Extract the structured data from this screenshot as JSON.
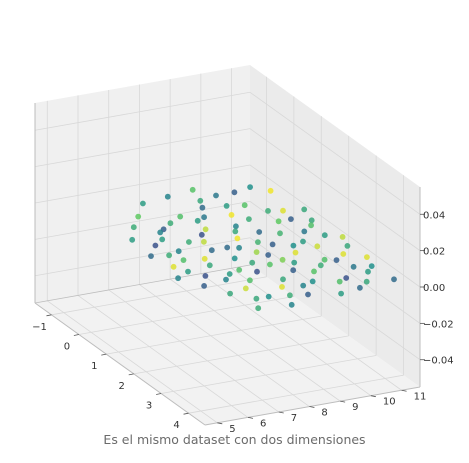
{
  "caption": "Es el mismo dataset con dos dimensiones",
  "chart_data": {
    "type": "scatter",
    "projection": "3d",
    "title": "",
    "xlabel": "",
    "ylabel": "",
    "zlabel": "",
    "x_ticks": [
      "−1",
      "0",
      "1",
      "2",
      "3",
      "4"
    ],
    "y_ticks": [
      "5",
      "6",
      "7",
      "8",
      "9",
      "10",
      "11"
    ],
    "z_ticks": [
      "−0.04",
      "−0.02",
      "0.00",
      "0.02",
      "0.04"
    ],
    "xlim": [
      -1.6,
      4.6
    ],
    "ylim": [
      4.6,
      11.6
    ],
    "zlim": [
      -0.055,
      0.055
    ],
    "grid": true,
    "colormap": "viridis",
    "colors": {
      "pane_left": "#f0f0f0",
      "pane_back": "#ebebeb",
      "pane_floor": "#f2f2f2",
      "grid": "#d8d8d8",
      "axis": "#bdbdbd"
    },
    "points": [
      {
        "x": 0.2,
        "y": 7.4,
        "z": 0,
        "c": 0.62
      },
      {
        "x": 0.5,
        "y": 6.8,
        "z": 0,
        "c": 0.45
      },
      {
        "x": 0.3,
        "y": 8.2,
        "z": 0,
        "c": 0.55
      },
      {
        "x": 0.0,
        "y": 7.9,
        "z": 0,
        "c": 0.7
      },
      {
        "x": 1.2,
        "y": 7.6,
        "z": 0,
        "c": 0.9
      },
      {
        "x": 1.0,
        "y": 8.8,
        "z": 0,
        "c": 0.6
      },
      {
        "x": 1.6,
        "y": 8.0,
        "z": 0,
        "c": 0.35
      },
      {
        "x": 0.5,
        "y": 10.8,
        "z": 0,
        "c": 0.95
      },
      {
        "x": -0.6,
        "y": 10.2,
        "z": 0,
        "c": 0.3
      },
      {
        "x": 0.9,
        "y": 10.3,
        "z": 0,
        "c": 0.75
      },
      {
        "x": 1.8,
        "y": 11.0,
        "z": 0,
        "c": 0.55
      },
      {
        "x": 2.2,
        "y": 10.4,
        "z": 0,
        "c": 0.92
      },
      {
        "x": 1.4,
        "y": 9.9,
        "z": 0,
        "c": 0.65
      },
      {
        "x": 2.8,
        "y": 10.1,
        "z": 0,
        "c": 0.7
      },
      {
        "x": 3.3,
        "y": 10.6,
        "z": 0,
        "c": 0.4
      },
      {
        "x": 3.7,
        "y": 10.0,
        "z": 0,
        "c": 0.25
      },
      {
        "x": 4.0,
        "y": 10.4,
        "z": 0,
        "c": 0.6
      },
      {
        "x": 2.7,
        "y": 9.2,
        "z": 0,
        "c": 0.55
      },
      {
        "x": 2.3,
        "y": 9.6,
        "z": 0,
        "c": 0.95
      },
      {
        "x": 3.6,
        "y": 9.0,
        "z": 0,
        "c": 0.5
      },
      {
        "x": 2.0,
        "y": 8.6,
        "z": 0,
        "c": 0.85
      },
      {
        "x": 1.8,
        "y": 9.3,
        "z": 0,
        "c": 0.3
      },
      {
        "x": 0.6,
        "y": 9.6,
        "z": 0,
        "c": 0.62
      },
      {
        "x": 0.8,
        "y": 9.0,
        "z": 0,
        "c": 0.45
      },
      {
        "x": -0.2,
        "y": 8.8,
        "z": 0,
        "c": 0.35
      },
      {
        "x": -0.5,
        "y": 9.0,
        "z": 0,
        "c": 0.6
      },
      {
        "x": 0.0,
        "y": 10.0,
        "z": 0,
        "c": 0.72
      },
      {
        "x": -0.4,
        "y": 11.2,
        "z": 0,
        "c": 0.98
      },
      {
        "x": 1.1,
        "y": 11.2,
        "z": 0,
        "c": 0.6
      },
      {
        "x": 2.7,
        "y": 10.8,
        "z": 0,
        "c": 0.95
      },
      {
        "x": 3.0,
        "y": 9.8,
        "z": 0,
        "c": 0.62
      },
      {
        "x": 2.6,
        "y": 8.5,
        "z": 0,
        "c": 0.72
      },
      {
        "x": 3.0,
        "y": 8.9,
        "z": 0,
        "c": 0.3
      },
      {
        "x": 3.3,
        "y": 8.3,
        "z": 0,
        "c": 0.6
      },
      {
        "x": 2.1,
        "y": 7.8,
        "z": 0,
        "c": 0.5
      },
      {
        "x": 2.6,
        "y": 7.5,
        "z": 0,
        "c": 0.7
      },
      {
        "x": 1.4,
        "y": 6.6,
        "z": 0,
        "c": 0.45
      },
      {
        "x": 1.9,
        "y": 7.0,
        "z": 0,
        "c": 0.95
      },
      {
        "x": 2.2,
        "y": 6.9,
        "z": 0,
        "c": 0.6
      },
      {
        "x": 1.0,
        "y": 6.2,
        "z": 0,
        "c": 0.25
      },
      {
        "x": 0.6,
        "y": 5.8,
        "z": 0,
        "c": 0.55
      },
      {
        "x": 1.4,
        "y": 5.7,
        "z": 0,
        "c": 0.35
      },
      {
        "x": 2.3,
        "y": 6.1,
        "z": 0,
        "c": 0.55
      },
      {
        "x": 2.6,
        "y": 6.4,
        "z": 0,
        "c": 0.25
      },
      {
        "x": 2.9,
        "y": 6.8,
        "z": 0,
        "c": 0.45
      },
      {
        "x": 3.1,
        "y": 7.4,
        "z": 0,
        "c": 0.7
      },
      {
        "x": 3.6,
        "y": 8.0,
        "z": 0,
        "c": 0.95
      },
      {
        "x": 3.9,
        "y": 7.3,
        "z": 0,
        "c": 0.5
      },
      {
        "x": 3.5,
        "y": 6.4,
        "z": 0,
        "c": 0.6
      },
      {
        "x": 4.1,
        "y": 8.4,
        "z": 0,
        "c": 0.3
      },
      {
        "x": 4.3,
        "y": 9.3,
        "z": 0,
        "c": 0.55
      },
      {
        "x": 3.8,
        "y": 9.7,
        "z": 0,
        "c": 0.7
      },
      {
        "x": 4.2,
        "y": 10.0,
        "z": 0,
        "c": 0.35
      },
      {
        "x": 4.3,
        "y": 6.6,
        "z": 0,
        "c": 0.62
      },
      {
        "x": 2.0,
        "y": 9.8,
        "z": 0,
        "c": 0.5
      },
      {
        "x": 1.5,
        "y": 10.6,
        "z": 0,
        "c": 0.4
      },
      {
        "x": 1.3,
        "y": 8.6,
        "z": 0,
        "c": 0.98
      },
      {
        "x": 1.6,
        "y": 9.0,
        "z": 0,
        "c": 0.65
      },
      {
        "x": 0.4,
        "y": 7.0,
        "z": 0,
        "c": 0.3
      },
      {
        "x": 0.1,
        "y": 6.3,
        "z": 0,
        "c": 0.62
      },
      {
        "x": -0.3,
        "y": 6.8,
        "z": 0,
        "c": 0.75
      },
      {
        "x": -0.8,
        "y": 7.4,
        "z": 0,
        "c": 0.55
      },
      {
        "x": -0.9,
        "y": 8.3,
        "z": 0,
        "c": 0.45
      },
      {
        "x": -0.6,
        "y": 9.6,
        "z": 0,
        "c": 0.4
      },
      {
        "x": 1.1,
        "y": 7.2,
        "z": 0,
        "c": 0.62
      },
      {
        "x": 1.6,
        "y": 7.5,
        "z": 0,
        "c": 0.35
      },
      {
        "x": 0.7,
        "y": 8.1,
        "z": 0,
        "c": 0.9
      },
      {
        "x": 2.4,
        "y": 8.1,
        "z": 0,
        "c": 0.6
      },
      {
        "x": 2.8,
        "y": 7.9,
        "z": 0,
        "c": 0.25
      },
      {
        "x": 3.2,
        "y": 9.4,
        "z": 0,
        "c": 0.72
      },
      {
        "x": 0.9,
        "y": 10.7,
        "z": 0,
        "c": 0.3
      },
      {
        "x": 2.4,
        "y": 11.2,
        "z": 0,
        "c": 0.6
      },
      {
        "x": 3.0,
        "y": 11.3,
        "z": 0,
        "c": 0.95
      },
      {
        "x": 3.4,
        "y": 11.1,
        "z": 0,
        "c": 0.5
      },
      {
        "x": 1.7,
        "y": 8.3,
        "z": 0,
        "c": 0.45
      },
      {
        "x": 2.2,
        "y": 8.8,
        "z": 0,
        "c": 0.3
      },
      {
        "x": 0.3,
        "y": 9.3,
        "z": 0,
        "c": 0.98
      },
      {
        "x": -0.1,
        "y": 9.5,
        "z": 0,
        "c": 0.55
      },
      {
        "x": 1.2,
        "y": 9.4,
        "z": 0,
        "c": 0.35
      },
      {
        "x": 0.9,
        "y": 7.8,
        "z": 0,
        "c": 0.25
      },
      {
        "x": 3.4,
        "y": 7.0,
        "z": 0,
        "c": 0.92
      },
      {
        "x": 4.0,
        "y": 7.9,
        "z": 0,
        "c": 0.62
      },
      {
        "x": 3.7,
        "y": 8.6,
        "z": 0,
        "c": 0.45
      },
      {
        "x": 2.5,
        "y": 9.0,
        "z": 0,
        "c": 0.8
      },
      {
        "x": 1.9,
        "y": 10.2,
        "z": 0,
        "c": 0.55
      },
      {
        "x": 2.9,
        "y": 10.4,
        "z": 0,
        "c": 0.3
      },
      {
        "x": 0.4,
        "y": 10.4,
        "z": 0,
        "c": 0.62
      },
      {
        "x": -0.7,
        "y": 10.8,
        "z": 0,
        "c": 0.5
      },
      {
        "x": -1.0,
        "y": 9.2,
        "z": 0,
        "c": 0.72
      },
      {
        "x": 0.2,
        "y": 8.5,
        "z": 0,
        "c": 0.4
      },
      {
        "x": 1.5,
        "y": 6.2,
        "z": 0,
        "c": 0.62
      },
      {
        "x": 2.0,
        "y": 5.9,
        "z": 0,
        "c": 0.95
      },
      {
        "x": 0.8,
        "y": 6.6,
        "z": 0,
        "c": 0.55
      },
      {
        "x": 3.0,
        "y": 6.0,
        "z": 0,
        "c": 0.3
      },
      {
        "x": 3.9,
        "y": 6.9,
        "z": 0,
        "c": 0.6
      },
      {
        "x": 4.4,
        "y": 7.6,
        "z": 0,
        "c": 0.45
      },
      {
        "x": 1.3,
        "y": 11.0,
        "z": 0,
        "c": 0.7
      },
      {
        "x": 2.0,
        "y": 11.4,
        "z": 0,
        "c": 0.9
      },
      {
        "x": 3.6,
        "y": 10.8,
        "z": 0,
        "c": 0.55
      },
      {
        "x": 4.1,
        "y": 11.2,
        "z": 0,
        "c": 0.35
      },
      {
        "x": 0.6,
        "y": 11.4,
        "z": 0,
        "c": 0.6
      },
      {
        "x": 2.5,
        "y": 5.6,
        "z": 0,
        "c": 0.45
      },
      {
        "x": 1.8,
        "y": 6.4,
        "z": 0,
        "c": 0.7
      },
      {
        "x": 2.7,
        "y": 7.1,
        "z": 0,
        "c": 0.55
      }
    ]
  }
}
